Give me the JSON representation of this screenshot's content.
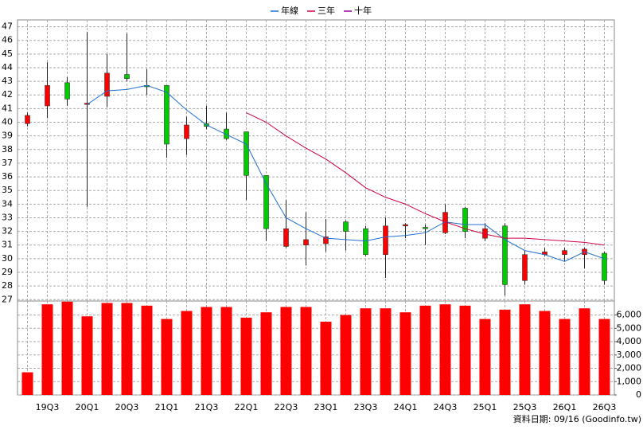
{
  "chart_data": [
    {
      "type": "candlestick",
      "open": [
        39.9,
        41.2,
        42.9,
        41.3,
        41.9,
        43.5,
        42.7,
        42.7,
        38.8,
        39.9,
        39.5,
        39.3,
        36.1,
        30.9,
        31.0,
        31.1,
        32.7,
        32.2,
        30.3,
        32.4,
        32.3,
        31.9,
        33.7,
        31.5,
        32.4,
        28.4,
        30.3,
        30.3,
        30.3,
        30.4
      ],
      "high": [
        40.7,
        44.4,
        43.3,
        46.6,
        45.0,
        46.5,
        43.9,
        42.7,
        40.4,
        41.2,
        40.7,
        39.3,
        36.1,
        34.3,
        33.4,
        32.9,
        32.8,
        32.4,
        33.0,
        32.6,
        32.5,
        34.0,
        33.8,
        32.6,
        32.6,
        30.6,
        30.8,
        30.8,
        30.8,
        30.5
      ],
      "low": [
        39.7,
        40.3,
        41.2,
        33.8,
        41.1,
        43.0,
        42.0,
        37.4,
        37.6,
        39.5,
        38.7,
        34.3,
        31.3,
        30.8,
        29.5,
        30.5,
        30.6,
        30.2,
        28.6,
        31.5,
        31.0,
        31.8,
        31.5,
        31.3,
        27.3,
        28.1,
        30.2,
        29.8,
        29.3,
        28.1
      ],
      "close": [
        40.5,
        42.7,
        41.7,
        41.4,
        43.6,
        43.2,
        42.6,
        38.4,
        39.8,
        39.7,
        38.8,
        36.1,
        32.2,
        32.2,
        31.4,
        31.6,
        32.0,
        30.3,
        32.4,
        32.5,
        32.2,
        33.4,
        32.0,
        32.2,
        28.1,
        30.3,
        30.5,
        30.6,
        30.7,
        28.4
      ],
      "up_color": "#ff0000",
      "down_color": "#00cc00",
      "series": [
        {
          "name": "年線",
          "color": "#1f6fd0",
          "values": [
            null,
            null,
            null,
            41.3,
            42.3,
            42.4,
            42.7,
            42.2,
            40.9,
            39.8,
            39.1,
            38.4,
            35.5,
            33.0,
            32.2,
            31.5,
            31.4,
            31.3,
            31.6,
            31.7,
            31.9,
            32.7,
            32.5,
            32.5,
            31.4,
            30.6,
            30.3,
            29.8,
            30.5,
            30.0
          ]
        },
        {
          "name": "三年",
          "color": "#cc0044",
          "values": [
            null,
            null,
            null,
            null,
            null,
            null,
            null,
            null,
            null,
            null,
            null,
            40.7,
            40.0,
            39.0,
            38.1,
            37.3,
            36.3,
            35.2,
            34.5,
            34.0,
            33.3,
            32.7,
            32.2,
            31.8,
            31.5,
            31.5,
            31.4,
            31.3,
            31.2,
            31.0
          ]
        },
        {
          "name": "十年",
          "color": "#990099",
          "values": [
            null,
            null,
            null,
            null,
            null,
            null,
            null,
            null,
            null,
            null,
            null,
            null,
            null,
            null,
            null,
            null,
            null,
            null,
            null,
            null,
            null,
            null,
            null,
            null,
            null,
            null,
            null,
            null,
            null,
            null
          ]
        }
      ],
      "legend": "top",
      "ylim": [
        26.9,
        47.5
      ],
      "yticks": [
        27,
        28,
        29,
        30,
        31,
        32,
        33,
        34,
        35,
        36,
        37,
        38,
        39,
        40,
        41,
        42,
        43,
        44,
        45,
        46,
        47
      ],
      "grid": true
    },
    {
      "type": "bar",
      "categories": [
        null,
        "19Q3",
        null,
        "20Q1",
        null,
        "20Q3",
        null,
        "21Q1",
        null,
        "21Q3",
        null,
        "22Q1",
        null,
        "22Q3",
        null,
        "23Q1",
        null,
        "23Q3",
        null,
        "24Q1",
        null,
        "24Q3",
        null,
        "25Q1",
        null,
        "25Q3",
        null,
        "26Q1",
        null,
        "26Q3"
      ],
      "values": [
        1700,
        6800,
        7000,
        5900,
        6900,
        6900,
        6700,
        5700,
        6300,
        6600,
        6600,
        5800,
        6200,
        6600,
        6600,
        5500,
        6000,
        6500,
        6500,
        6200,
        6700,
        6800,
        6700,
        5700,
        6400,
        6800,
        6300,
        5700,
        6500,
        5700
      ],
      "color": "#ff0000",
      "ylim": [
        0,
        7050
      ],
      "yticks": [
        0,
        {
          "value": 1000,
          "label": "1,000"
        },
        {
          "value": 2000,
          "label": "2,000"
        },
        {
          "value": 3000,
          "label": "3,000"
        },
        {
          "value": 4000,
          "label": "4,000"
        },
        {
          "value": 5000,
          "label": "5,000"
        },
        {
          "value": 6000,
          "label": "6,000"
        }
      ],
      "grid": true,
      "source": "資料日期: 09/16 (Goodinfo.tw)"
    }
  ]
}
